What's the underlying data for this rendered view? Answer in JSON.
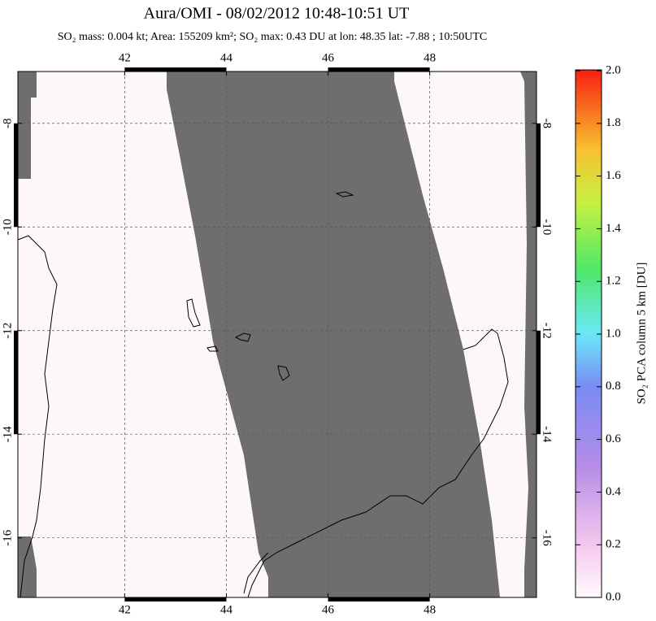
{
  "chart_data": {
    "type": "map",
    "title": "Aura/OMI - 08/02/2012 10:48-10:51 UT",
    "subtitle": "SO₂ mass: 0.004 kt; Area: 155209 km²; SO₂ max: 0.43 DU at lon: 48.35 lat: -7.88 ; 10:50UTC",
    "xlim": [
      39.9,
      50.1
    ],
    "xticks": [
      42,
      44,
      46,
      48
    ],
    "ylim": [
      -17.15,
      -7.0
    ],
    "yticks": [
      -8,
      -10,
      -12,
      -14,
      -16
    ],
    "grid": true,
    "colorbar": {
      "label": "SO₂ PCA column 5 km [DU]",
      "lim": [
        0,
        2
      ],
      "ticks": [
        {
          "value": 0,
          "label": "0.0"
        },
        0.2,
        0.4,
        0.6,
        0.8,
        {
          "value": 1,
          "label": "1.0"
        },
        1.2,
        1.4,
        1.6,
        1.8,
        {
          "value": 2,
          "label": "2.0"
        }
      ]
    }
  }
}
